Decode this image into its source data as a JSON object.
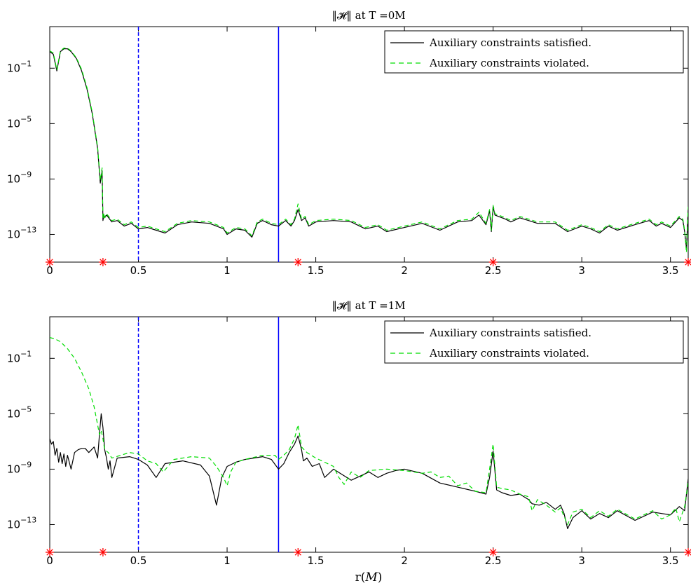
{
  "chart_data": [
    {
      "type": "line",
      "title": "‖𝓗‖ at T =0M",
      "xlabel": "",
      "ylabel": "",
      "y_scale": "log",
      "xlim": [
        0,
        3.6
      ],
      "ylim_log10": [
        -15,
        2
      ],
      "x_ticks": [
        0,
        0.5,
        1,
        1.5,
        2,
        2.5,
        3,
        3.5
      ],
      "x_tick_labels": [
        "0",
        "0.5",
        "1",
        "1.5",
        "2",
        "2.5",
        "3",
        "3.5"
      ],
      "y_ticks_log10": [
        -1,
        -5,
        -9,
        -13
      ],
      "y_tick_labels": [
        {
          "base": "10",
          "exp": "−1"
        },
        {
          "base": "10",
          "exp": "−5"
        },
        {
          "base": "10",
          "exp": "−9"
        },
        {
          "base": "10",
          "exp": "−13"
        }
      ],
      "vlines": [
        {
          "x": 0.5,
          "style": "dashed",
          "color": "#0000ff"
        },
        {
          "x": 1.29,
          "style": "solid",
          "color": "#0000ff"
        }
      ],
      "markers_x": [
        0,
        0.3,
        1.4,
        2.5,
        3.6
      ],
      "legend": {
        "position": "top-right",
        "entries": [
          "Auxiliary constraints satisfied.",
          "Auxiliary constraints violated."
        ]
      },
      "series": [
        {
          "name": "Auxiliary constraints satisfied.",
          "color": "#000000",
          "dash": "solid",
          "x": [
            0,
            0.02,
            0.04,
            0.06,
            0.08,
            0.1,
            0.12,
            0.15,
            0.18,
            0.21,
            0.24,
            0.27,
            0.285,
            0.295,
            0.3,
            0.305,
            0.31,
            0.32,
            0.35,
            0.38,
            0.42,
            0.46,
            0.5,
            0.55,
            0.6,
            0.65,
            0.72,
            0.8,
            0.9,
            0.98,
            1.0,
            1.05,
            1.1,
            1.14,
            1.17,
            1.2,
            1.25,
            1.29,
            1.33,
            1.36,
            1.38,
            1.4,
            1.42,
            1.44,
            1.46,
            1.5,
            1.6,
            1.7,
            1.78,
            1.85,
            1.9,
            2.0,
            2.1,
            2.2,
            2.3,
            2.38,
            2.42,
            2.46,
            2.48,
            2.49,
            2.5,
            2.51,
            2.53,
            2.57,
            2.6,
            2.65,
            2.7,
            2.75,
            2.85,
            2.92,
            3.0,
            3.05,
            3.1,
            3.15,
            3.2,
            3.3,
            3.38,
            3.42,
            3.45,
            3.5,
            3.55,
            3.57,
            3.58,
            3.59,
            3.6
          ],
          "y_log10": [
            0.2,
            0.0,
            -1.2,
            0.2,
            0.4,
            0.4,
            0.2,
            -0.3,
            -1.2,
            -2.5,
            -4.3,
            -6.8,
            -9.3,
            -8.4,
            -12.0,
            -11.6,
            -11.8,
            -11.6,
            -12.1,
            -12.0,
            -12.4,
            -12.2,
            -12.6,
            -12.5,
            -12.7,
            -12.9,
            -12.3,
            -12.1,
            -12.2,
            -12.6,
            -13.0,
            -12.6,
            -12.7,
            -13.2,
            -12.2,
            -12.0,
            -12.3,
            -12.4,
            -12.0,
            -12.4,
            -12.0,
            -11.2,
            -12.0,
            -11.8,
            -12.4,
            -12.1,
            -12.0,
            -12.1,
            -12.6,
            -12.4,
            -12.8,
            -12.5,
            -12.2,
            -12.7,
            -12.1,
            -12.0,
            -11.6,
            -12.3,
            -11.3,
            -12.8,
            -11.0,
            -11.6,
            -11.7,
            -11.9,
            -12.1,
            -11.8,
            -12.0,
            -12.2,
            -12.2,
            -12.8,
            -12.4,
            -12.6,
            -12.9,
            -12.4,
            -12.7,
            -12.3,
            -12.0,
            -12.4,
            -12.2,
            -12.5,
            -11.8,
            -12.0,
            -12.8,
            -14.0,
            -11.2
          ]
        },
        {
          "name": "Auxiliary constraints violated.",
          "color": "#00dd00",
          "dash": "dashed",
          "x": [
            0,
            0.02,
            0.04,
            0.06,
            0.08,
            0.1,
            0.12,
            0.15,
            0.18,
            0.21,
            0.24,
            0.27,
            0.285,
            0.295,
            0.3,
            0.305,
            0.31,
            0.32,
            0.35,
            0.38,
            0.42,
            0.46,
            0.5,
            0.55,
            0.6,
            0.65,
            0.72,
            0.8,
            0.9,
            0.98,
            1.0,
            1.05,
            1.1,
            1.14,
            1.17,
            1.2,
            1.25,
            1.29,
            1.33,
            1.36,
            1.38,
            1.4,
            1.42,
            1.44,
            1.46,
            1.5,
            1.6,
            1.7,
            1.78,
            1.85,
            1.9,
            2.0,
            2.1,
            2.2,
            2.3,
            2.38,
            2.42,
            2.46,
            2.48,
            2.49,
            2.5,
            2.51,
            2.53,
            2.57,
            2.6,
            2.65,
            2.7,
            2.75,
            2.85,
            2.92,
            3.0,
            3.05,
            3.1,
            3.15,
            3.2,
            3.3,
            3.38,
            3.42,
            3.45,
            3.5,
            3.55,
            3.57,
            3.58,
            3.59,
            3.6
          ],
          "y_log10": [
            0.25,
            0.1,
            -1.1,
            0.25,
            0.45,
            0.45,
            0.25,
            -0.25,
            -1.1,
            -2.4,
            -4.2,
            -6.7,
            -9.1,
            -8.2,
            -11.9,
            -11.5,
            -11.8,
            -11.5,
            -12.0,
            -11.9,
            -12.3,
            -12.1,
            -12.5,
            -12.4,
            -12.6,
            -12.8,
            -12.2,
            -12.0,
            -12.1,
            -12.5,
            -12.9,
            -12.5,
            -12.6,
            -13.1,
            -12.1,
            -11.9,
            -12.2,
            -12.3,
            -11.9,
            -12.3,
            -11.9,
            -10.8,
            -11.9,
            -11.7,
            -12.3,
            -12.0,
            -11.9,
            -12.0,
            -12.5,
            -12.3,
            -12.7,
            -12.4,
            -12.1,
            -12.6,
            -12.0,
            -11.9,
            -11.4,
            -12.2,
            -11.2,
            -12.7,
            -10.9,
            -11.5,
            -11.6,
            -11.8,
            -12.0,
            -11.7,
            -11.9,
            -12.1,
            -12.1,
            -12.7,
            -12.3,
            -12.5,
            -12.8,
            -12.3,
            -12.6,
            -12.2,
            -11.9,
            -12.3,
            -12.1,
            -12.4,
            -11.7,
            -11.9,
            -12.7,
            -14.3,
            -11.0
          ]
        }
      ]
    },
    {
      "type": "line",
      "title": "‖𝓗‖ at T =1M",
      "xlabel": "r(𝑀)",
      "ylabel": "",
      "y_scale": "log",
      "xlim": [
        0,
        3.6
      ],
      "ylim_log10": [
        -15,
        2
      ],
      "x_ticks": [
        0,
        0.5,
        1,
        1.5,
        2,
        2.5,
        3,
        3.5
      ],
      "x_tick_labels": [
        "0",
        "0.5",
        "1",
        "1.5",
        "2",
        "2.5",
        "3",
        "3.5"
      ],
      "y_ticks_log10": [
        -1,
        -5,
        -9,
        -13
      ],
      "y_tick_labels": [
        {
          "base": "10",
          "exp": "−1"
        },
        {
          "base": "10",
          "exp": "−5"
        },
        {
          "base": "10",
          "exp": "−9"
        },
        {
          "base": "10",
          "exp": "−13"
        }
      ],
      "vlines": [
        {
          "x": 0.5,
          "style": "dashed",
          "color": "#0000ff"
        },
        {
          "x": 1.29,
          "style": "solid",
          "color": "#0000ff"
        }
      ],
      "markers_x": [
        0,
        0.3,
        1.4,
        2.5,
        3.6
      ],
      "legend": {
        "position": "top-right",
        "entries": [
          "Auxiliary constraints satisfied.",
          "Auxiliary constraints violated."
        ]
      },
      "series": [
        {
          "name": "Auxiliary constraints satisfied.",
          "color": "#000000",
          "dash": "solid",
          "x": [
            0,
            0.01,
            0.02,
            0.03,
            0.04,
            0.05,
            0.06,
            0.07,
            0.08,
            0.09,
            0.1,
            0.12,
            0.14,
            0.16,
            0.18,
            0.2,
            0.22,
            0.25,
            0.27,
            0.28,
            0.29,
            0.3,
            0.31,
            0.32,
            0.33,
            0.34,
            0.35,
            0.38,
            0.45,
            0.5,
            0.55,
            0.6,
            0.65,
            0.75,
            0.85,
            0.9,
            0.94,
            0.97,
            1.0,
            1.05,
            1.1,
            1.2,
            1.25,
            1.29,
            1.32,
            1.35,
            1.38,
            1.4,
            1.42,
            1.43,
            1.45,
            1.48,
            1.52,
            1.55,
            1.6,
            1.7,
            1.8,
            1.85,
            1.9,
            1.95,
            2.0,
            2.1,
            2.2,
            2.3,
            2.4,
            2.46,
            2.48,
            2.5,
            2.52,
            2.55,
            2.6,
            2.65,
            2.7,
            2.72,
            2.76,
            2.8,
            2.85,
            2.88,
            2.9,
            2.92,
            2.95,
            3.0,
            3.05,
            3.1,
            3.15,
            3.2,
            3.3,
            3.4,
            3.45,
            3.5,
            3.55,
            3.58,
            3.6
          ],
          "y_log10": [
            -6.8,
            -7.2,
            -7.0,
            -8.0,
            -7.5,
            -8.5,
            -7.8,
            -8.6,
            -7.9,
            -8.8,
            -8.0,
            -9.0,
            -7.8,
            -7.6,
            -7.5,
            -7.5,
            -7.8,
            -7.4,
            -8.2,
            -6.5,
            -5.0,
            -6.0,
            -7.6,
            -8.2,
            -9.0,
            -8.4,
            -9.6,
            -8.2,
            -8.1,
            -8.3,
            -8.7,
            -9.6,
            -8.6,
            -8.4,
            -8.7,
            -9.5,
            -11.6,
            -9.6,
            -8.8,
            -8.5,
            -8.3,
            -8.1,
            -8.3,
            -9.0,
            -8.6,
            -7.8,
            -7.2,
            -6.6,
            -7.6,
            -8.4,
            -8.2,
            -8.8,
            -8.6,
            -9.6,
            -9.0,
            -9.8,
            -9.2,
            -9.6,
            -9.3,
            -9.1,
            -9.0,
            -9.3,
            -10.0,
            -10.3,
            -10.6,
            -10.8,
            -9.6,
            -7.7,
            -10.5,
            -10.7,
            -10.9,
            -10.8,
            -11.2,
            -11.5,
            -11.6,
            -11.4,
            -11.9,
            -11.6,
            -12.2,
            -13.3,
            -12.5,
            -12.0,
            -12.6,
            -12.2,
            -12.5,
            -12.0,
            -12.7,
            -12.1,
            -12.2,
            -12.3,
            -11.7,
            -12.0,
            -9.7
          ]
        },
        {
          "name": "Auxiliary constraints violated.",
          "color": "#00dd00",
          "dash": "dashed",
          "x": [
            0,
            0.03,
            0.06,
            0.1,
            0.14,
            0.18,
            0.22,
            0.25,
            0.27,
            0.28,
            0.29,
            0.3,
            0.31,
            0.33,
            0.35,
            0.4,
            0.45,
            0.5,
            0.55,
            0.6,
            0.64,
            0.7,
            0.8,
            0.9,
            0.94,
            0.98,
            1.0,
            1.02,
            1.05,
            1.1,
            1.2,
            1.27,
            1.29,
            1.32,
            1.35,
            1.38,
            1.4,
            1.42,
            1.45,
            1.5,
            1.55,
            1.6,
            1.63,
            1.66,
            1.7,
            1.75,
            1.8,
            1.9,
            2.0,
            2.1,
            2.15,
            2.2,
            2.25,
            2.3,
            2.35,
            2.4,
            2.46,
            2.48,
            2.5,
            2.52,
            2.55,
            2.6,
            2.65,
            2.7,
            2.72,
            2.75,
            2.8,
            2.85,
            2.88,
            2.92,
            2.95,
            3.0,
            3.05,
            3.1,
            3.15,
            3.2,
            3.3,
            3.4,
            3.45,
            3.5,
            3.53,
            3.55,
            3.58,
            3.6
          ],
          "y_log10": [
            0.5,
            0.4,
            0.2,
            -0.3,
            -1.0,
            -2.0,
            -3.2,
            -4.5,
            -5.8,
            -6.5,
            -6.2,
            -6.8,
            -7.6,
            -7.8,
            -8.2,
            -8.0,
            -7.8,
            -7.9,
            -8.4,
            -8.6,
            -9.2,
            -8.3,
            -8.1,
            -8.2,
            -8.8,
            -9.6,
            -10.2,
            -9.2,
            -8.5,
            -8.3,
            -8.0,
            -8.0,
            -8.3,
            -8.0,
            -7.6,
            -6.8,
            -5.8,
            -7.4,
            -7.8,
            -8.2,
            -8.5,
            -8.8,
            -9.6,
            -10.1,
            -9.2,
            -9.6,
            -9.1,
            -9.0,
            -9.1,
            -9.3,
            -9.2,
            -9.6,
            -9.5,
            -10.2,
            -10.0,
            -10.6,
            -10.7,
            -9.0,
            -7.2,
            -10.3,
            -10.4,
            -10.5,
            -10.8,
            -11.0,
            -12.0,
            -11.2,
            -11.6,
            -12.1,
            -11.8,
            -13.0,
            -12.1,
            -11.9,
            -12.5,
            -12.0,
            -12.4,
            -11.9,
            -12.6,
            -12.0,
            -12.6,
            -12.3,
            -11.8,
            -12.8,
            -11.7,
            -10.0
          ]
        }
      ]
    }
  ]
}
